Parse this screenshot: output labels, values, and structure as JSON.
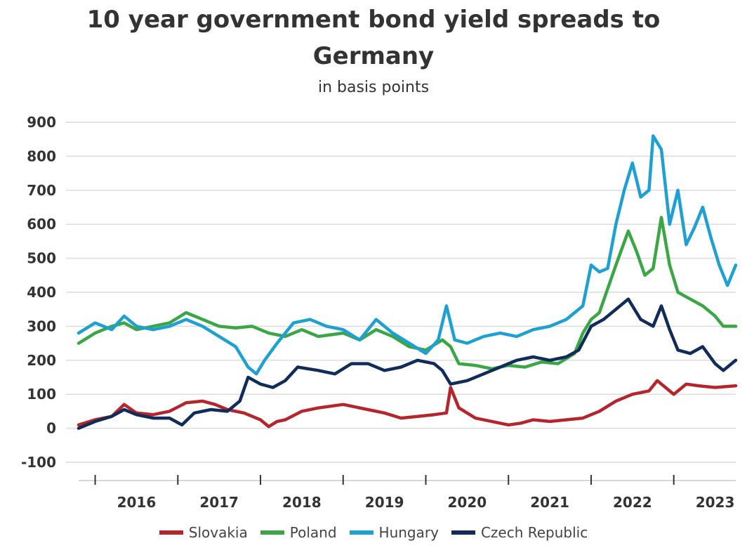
{
  "chart_data": {
    "type": "line",
    "title_line1": "10 year government bond yield spreads to",
    "title_line2": "Germany",
    "subtitle": "in basis points",
    "xlabel": "",
    "ylabel": "",
    "ylim": [
      -100,
      900
    ],
    "yticks": [
      "900",
      "800",
      "700",
      "600",
      "500",
      "400",
      "300",
      "200",
      "100",
      "0",
      "-100"
    ],
    "xticks": [
      "2016",
      "2017",
      "2018",
      "2019",
      "2020",
      "2021",
      "2022",
      "2023"
    ],
    "xlim": [
      2015.8,
      2023.75
    ],
    "grid": true,
    "legend_position": "bottom",
    "series": [
      {
        "name": "Slovakia",
        "color": "#b5252b",
        "points": [
          [
            2015.8,
            10
          ],
          [
            2016.0,
            25
          ],
          [
            2016.2,
            35
          ],
          [
            2016.35,
            70
          ],
          [
            2016.5,
            45
          ],
          [
            2016.7,
            40
          ],
          [
            2016.9,
            50
          ],
          [
            2017.1,
            75
          ],
          [
            2017.3,
            80
          ],
          [
            2017.45,
            70
          ],
          [
            2017.6,
            55
          ],
          [
            2017.8,
            45
          ],
          [
            2018.0,
            25
          ],
          [
            2018.1,
            5
          ],
          [
            2018.2,
            20
          ],
          [
            2018.3,
            25
          ],
          [
            2018.5,
            50
          ],
          [
            2018.7,
            60
          ],
          [
            2019.0,
            70
          ],
          [
            2019.3,
            55
          ],
          [
            2019.5,
            45
          ],
          [
            2019.7,
            30
          ],
          [
            2019.9,
            35
          ],
          [
            2020.1,
            40
          ],
          [
            2020.25,
            45
          ],
          [
            2020.3,
            120
          ],
          [
            2020.4,
            60
          ],
          [
            2020.6,
            30
          ],
          [
            2020.8,
            20
          ],
          [
            2021.0,
            10
          ],
          [
            2021.15,
            15
          ],
          [
            2021.3,
            25
          ],
          [
            2021.5,
            20
          ],
          [
            2021.7,
            25
          ],
          [
            2021.9,
            30
          ],
          [
            2022.1,
            50
          ],
          [
            2022.3,
            80
          ],
          [
            2022.5,
            100
          ],
          [
            2022.7,
            110
          ],
          [
            2022.8,
            140
          ],
          [
            2022.9,
            120
          ],
          [
            2023.0,
            100
          ],
          [
            2023.15,
            130
          ],
          [
            2023.3,
            125
          ],
          [
            2023.5,
            120
          ],
          [
            2023.75,
            125
          ]
        ]
      },
      {
        "name": "Poland",
        "color": "#3aa646",
        "points": [
          [
            2015.8,
            250
          ],
          [
            2016.0,
            280
          ],
          [
            2016.2,
            300
          ],
          [
            2016.35,
            310
          ],
          [
            2016.5,
            290
          ],
          [
            2016.7,
            300
          ],
          [
            2016.9,
            310
          ],
          [
            2017.1,
            340
          ],
          [
            2017.3,
            320
          ],
          [
            2017.5,
            300
          ],
          [
            2017.7,
            295
          ],
          [
            2017.9,
            300
          ],
          [
            2018.1,
            280
          ],
          [
            2018.3,
            270
          ],
          [
            2018.5,
            290
          ],
          [
            2018.7,
            270
          ],
          [
            2019.0,
            280
          ],
          [
            2019.2,
            260
          ],
          [
            2019.4,
            290
          ],
          [
            2019.6,
            270
          ],
          [
            2019.8,
            240
          ],
          [
            2020.0,
            230
          ],
          [
            2020.2,
            260
          ],
          [
            2020.3,
            240
          ],
          [
            2020.4,
            190
          ],
          [
            2020.6,
            185
          ],
          [
            2020.8,
            175
          ],
          [
            2021.0,
            185
          ],
          [
            2021.2,
            180
          ],
          [
            2021.4,
            195
          ],
          [
            2021.6,
            190
          ],
          [
            2021.8,
            220
          ],
          [
            2021.9,
            280
          ],
          [
            2022.0,
            320
          ],
          [
            2022.1,
            340
          ],
          [
            2022.3,
            480
          ],
          [
            2022.45,
            580
          ],
          [
            2022.55,
            520
          ],
          [
            2022.65,
            450
          ],
          [
            2022.75,
            470
          ],
          [
            2022.85,
            620
          ],
          [
            2022.95,
            480
          ],
          [
            2023.05,
            400
          ],
          [
            2023.2,
            380
          ],
          [
            2023.35,
            360
          ],
          [
            2023.5,
            330
          ],
          [
            2023.6,
            300
          ],
          [
            2023.75,
            300
          ]
        ]
      },
      {
        "name": "Hungary",
        "color": "#1ea0d2",
        "points": [
          [
            2015.8,
            280
          ],
          [
            2016.0,
            310
          ],
          [
            2016.2,
            290
          ],
          [
            2016.35,
            330
          ],
          [
            2016.5,
            300
          ],
          [
            2016.7,
            290
          ],
          [
            2016.9,
            300
          ],
          [
            2017.1,
            320
          ],
          [
            2017.3,
            300
          ],
          [
            2017.5,
            270
          ],
          [
            2017.7,
            240
          ],
          [
            2017.85,
            180
          ],
          [
            2017.95,
            160
          ],
          [
            2018.05,
            200
          ],
          [
            2018.2,
            250
          ],
          [
            2018.4,
            310
          ],
          [
            2018.6,
            320
          ],
          [
            2018.8,
            300
          ],
          [
            2019.0,
            290
          ],
          [
            2019.2,
            260
          ],
          [
            2019.4,
            320
          ],
          [
            2019.6,
            280
          ],
          [
            2019.8,
            250
          ],
          [
            2020.0,
            220
          ],
          [
            2020.15,
            260
          ],
          [
            2020.25,
            360
          ],
          [
            2020.35,
            260
          ],
          [
            2020.5,
            250
          ],
          [
            2020.7,
            270
          ],
          [
            2020.9,
            280
          ],
          [
            2021.1,
            270
          ],
          [
            2021.3,
            290
          ],
          [
            2021.5,
            300
          ],
          [
            2021.7,
            320
          ],
          [
            2021.9,
            360
          ],
          [
            2022.0,
            480
          ],
          [
            2022.1,
            460
          ],
          [
            2022.2,
            470
          ],
          [
            2022.3,
            600
          ],
          [
            2022.4,
            700
          ],
          [
            2022.5,
            780
          ],
          [
            2022.6,
            680
          ],
          [
            2022.7,
            700
          ],
          [
            2022.75,
            860
          ],
          [
            2022.85,
            820
          ],
          [
            2022.95,
            600
          ],
          [
            2023.05,
            700
          ],
          [
            2023.15,
            540
          ],
          [
            2023.25,
            590
          ],
          [
            2023.35,
            650
          ],
          [
            2023.45,
            560
          ],
          [
            2023.55,
            480
          ],
          [
            2023.65,
            420
          ],
          [
            2023.75,
            480
          ]
        ]
      },
      {
        "name": "Czech Republic",
        "color": "#0f2c5a",
        "points": [
          [
            2015.8,
            0
          ],
          [
            2016.0,
            20
          ],
          [
            2016.2,
            35
          ],
          [
            2016.35,
            55
          ],
          [
            2016.5,
            40
          ],
          [
            2016.7,
            30
          ],
          [
            2016.9,
            30
          ],
          [
            2017.05,
            10
          ],
          [
            2017.2,
            45
          ],
          [
            2017.4,
            55
          ],
          [
            2017.6,
            50
          ],
          [
            2017.75,
            80
          ],
          [
            2017.85,
            150
          ],
          [
            2018.0,
            130
          ],
          [
            2018.15,
            120
          ],
          [
            2018.3,
            140
          ],
          [
            2018.45,
            180
          ],
          [
            2018.7,
            170
          ],
          [
            2018.9,
            160
          ],
          [
            2019.1,
            190
          ],
          [
            2019.3,
            190
          ],
          [
            2019.5,
            170
          ],
          [
            2019.7,
            180
          ],
          [
            2019.9,
            200
          ],
          [
            2020.1,
            190
          ],
          [
            2020.2,
            170
          ],
          [
            2020.3,
            130
          ],
          [
            2020.5,
            140
          ],
          [
            2020.7,
            160
          ],
          [
            2020.9,
            180
          ],
          [
            2021.1,
            200
          ],
          [
            2021.3,
            210
          ],
          [
            2021.5,
            200
          ],
          [
            2021.7,
            210
          ],
          [
            2021.85,
            230
          ],
          [
            2022.0,
            300
          ],
          [
            2022.15,
            320
          ],
          [
            2022.3,
            350
          ],
          [
            2022.45,
            380
          ],
          [
            2022.6,
            320
          ],
          [
            2022.75,
            300
          ],
          [
            2022.85,
            360
          ],
          [
            2022.95,
            290
          ],
          [
            2023.05,
            230
          ],
          [
            2023.2,
            220
          ],
          [
            2023.35,
            240
          ],
          [
            2023.5,
            190
          ],
          [
            2023.6,
            170
          ],
          [
            2023.75,
            200
          ]
        ]
      }
    ]
  }
}
